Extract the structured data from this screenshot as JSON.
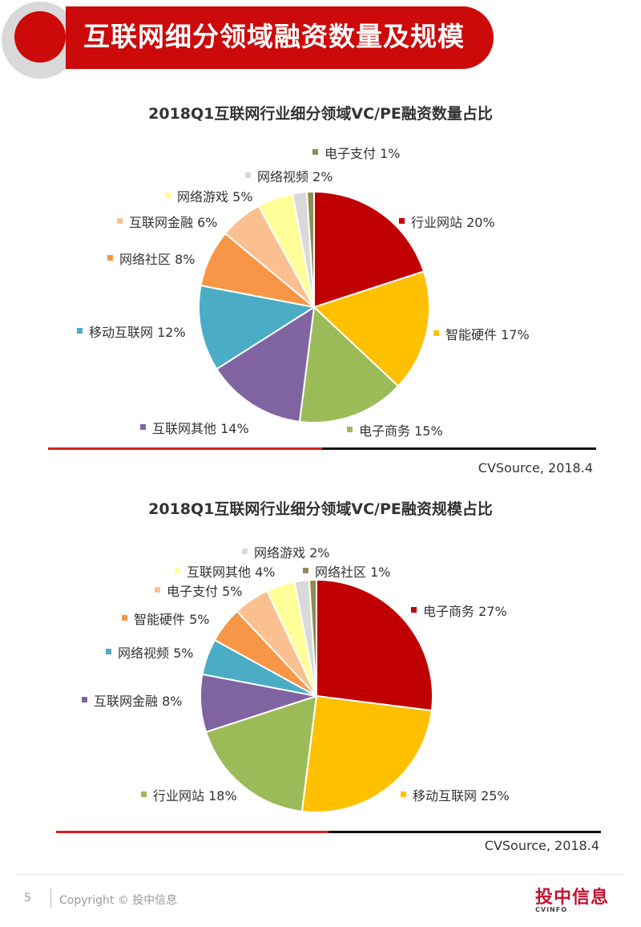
{
  "header": {
    "title": "互联网细分领域融资数量及规模"
  },
  "chart_data": [
    {
      "type": "pie",
      "title": "2018Q1互联网行业细分领域VC/PE融资数量占比",
      "source": "CVSource, 2018.4",
      "slices": [
        {
          "name": "行业网站",
          "value": 20,
          "label": "20%",
          "color": "#c00000"
        },
        {
          "name": "智能硬件",
          "value": 17,
          "label": "17%",
          "color": "#ffc000"
        },
        {
          "name": "电子商务",
          "value": 15,
          "label": "15%",
          "color": "#9bbb59"
        },
        {
          "name": "互联网其他",
          "value": 14,
          "label": "14%",
          "color": "#8064a2"
        },
        {
          "name": "移动互联网",
          "value": 12,
          "label": "12%",
          "color": "#4bacc6"
        },
        {
          "name": "网络社区",
          "value": 8,
          "label": "8%",
          "color": "#f79646"
        },
        {
          "name": "互联网金融",
          "value": 6,
          "label": "6%",
          "color": "#fac090"
        },
        {
          "name": "网络游戏",
          "value": 5,
          "label": "5%",
          "color": "#ffff99"
        },
        {
          "name": "网络视频",
          "value": 2,
          "label": "2%",
          "color": "#d9d9d9"
        },
        {
          "name": "电子支付",
          "value": 1,
          "label": "1%",
          "color": "#948a54"
        }
      ]
    },
    {
      "type": "pie",
      "title": "2018Q1互联网行业细分领域VC/PE融资规模占比",
      "source": "CVSource, 2018.4",
      "slices": [
        {
          "name": "电子商务",
          "value": 27,
          "label": "27%",
          "color": "#c00000"
        },
        {
          "name": "移动互联网",
          "value": 25,
          "label": "25%",
          "color": "#ffc000"
        },
        {
          "name": "行业网站",
          "value": 18,
          "label": "18%",
          "color": "#9bbb59"
        },
        {
          "name": "互联网金融",
          "value": 8,
          "label": "8%",
          "color": "#8064a2"
        },
        {
          "name": "网络视频",
          "value": 5,
          "label": "5%",
          "color": "#4bacc6"
        },
        {
          "name": "智能硬件",
          "value": 5,
          "label": "5%",
          "color": "#f79646"
        },
        {
          "name": "电子支付",
          "value": 5,
          "label": "5%",
          "color": "#fac090"
        },
        {
          "name": "互联网其他",
          "value": 4,
          "label": "4%",
          "color": "#ffff99"
        },
        {
          "name": "网络游戏",
          "value": 2,
          "label": "2%",
          "color": "#d9d9d9"
        },
        {
          "name": "网络社区",
          "value": 1,
          "label": "1%",
          "color": "#948a54"
        }
      ]
    }
  ],
  "footer": {
    "page_number": "5",
    "copyright": "Copyright © 投中信息",
    "logo_text": "投中信息",
    "logo_sub": "CVINFO"
  }
}
